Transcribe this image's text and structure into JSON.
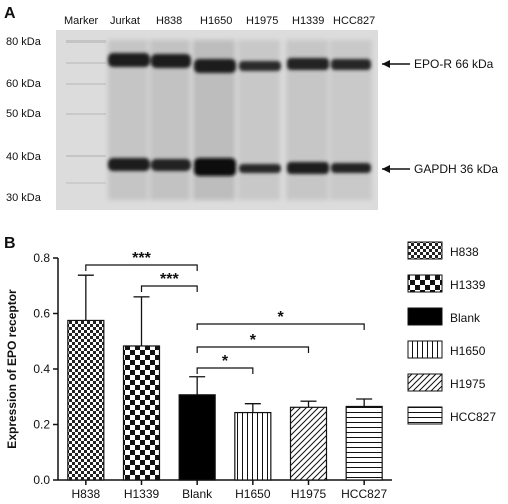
{
  "panel_a": {
    "label": "A",
    "lanes": [
      "Marker",
      "Jurkat",
      "H838",
      "H1650",
      "H1975",
      "H1339",
      "HCC827"
    ],
    "kda_markers": [
      "80 kDa",
      "60 kDa",
      "50 kDa",
      "40 kDa",
      "30 kDa"
    ],
    "bands": [
      {
        "name": "EPO-R",
        "label": "EPO-R  66 kDa"
      },
      {
        "name": "GAPDH",
        "label": "GAPDH 36 kDa"
      }
    ],
    "colors": {
      "blot_bg": "#d9d9d9",
      "band": "#1a1a1a"
    }
  },
  "panel_b": {
    "label": "B"
  },
  "chart_data": {
    "type": "bar",
    "categories": [
      "H838",
      "H1339",
      "Blank",
      "H1650",
      "H1975",
      "HCC827"
    ],
    "values": [
      0.575,
      0.483,
      0.307,
      0.243,
      0.262,
      0.265
    ],
    "errors": [
      0.163,
      0.177,
      0.065,
      0.032,
      0.022,
      0.027
    ],
    "ylabel": "Expression of EPO receptor",
    "xlabel": "",
    "ylim": [
      0.0,
      0.8
    ],
    "yticks": [
      "0.0",
      "0.2",
      "0.4",
      "0.6",
      "0.8"
    ],
    "grid": false,
    "legend_position": "right",
    "legend": [
      "H838",
      "H1339",
      "Blank",
      "H1650",
      "H1975",
      "HCC827"
    ],
    "patterns": [
      "checker-fine",
      "checker-coarse",
      "solid",
      "vertical",
      "diagonal",
      "horizontal"
    ],
    "significance": [
      {
        "from": "H838",
        "to": "Blank",
        "label": "***"
      },
      {
        "from": "H1339",
        "to": "Blank",
        "label": "***"
      },
      {
        "from": "Blank",
        "to": "H1650",
        "label": "*"
      },
      {
        "from": "Blank",
        "to": "H1975",
        "label": "*"
      },
      {
        "from": "Blank",
        "to": "HCC827",
        "label": "*"
      }
    ]
  }
}
